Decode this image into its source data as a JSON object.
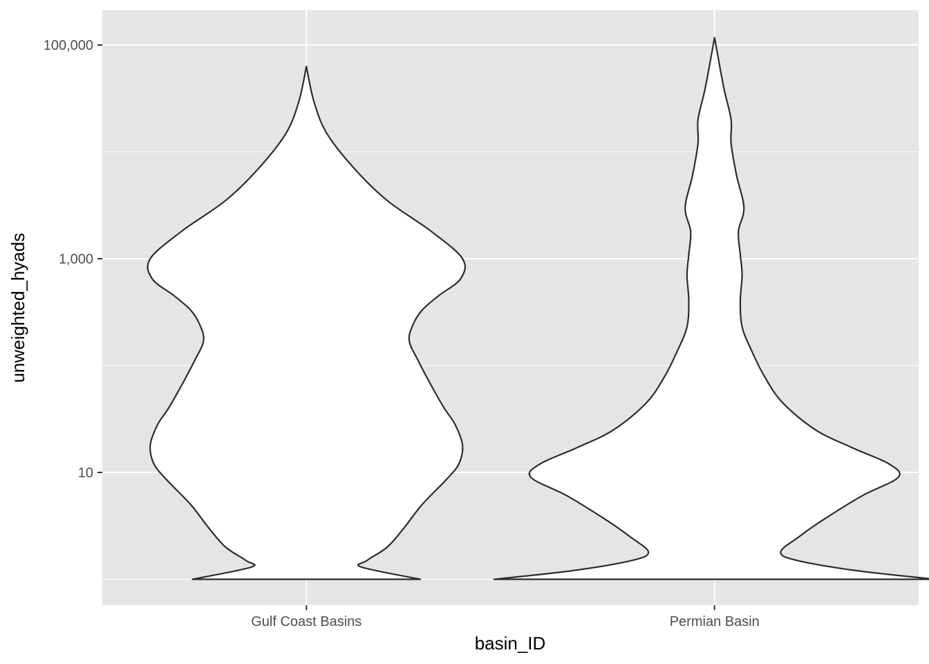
{
  "chart_data": {
    "type": "violin",
    "xlabel": "basin_ID",
    "ylabel": "unweighted_hyads",
    "y_scale": "log10",
    "ylim": [
      0.9,
      200000
    ],
    "y_ticks": [
      {
        "value": 10,
        "label": "10"
      },
      {
        "value": 1000,
        "label": "1,000"
      },
      {
        "value": 100000,
        "label": "100,000"
      }
    ],
    "y_minor_ticks": [
      1,
      100,
      10000
    ],
    "categories": [
      "Gulf Coast Basins",
      "Permian Basin"
    ],
    "grid": true,
    "colors": {
      "panel_background": "#e5e5e5",
      "grid": "#ffffff",
      "violin_fill": "#ffffff",
      "violin_stroke": "#2b2b2b",
      "tick_label": "#4d4d4d",
      "axis_title": "#000000"
    },
    "series": [
      {
        "category": "Gulf Coast Basins",
        "y_range": [
          1,
          63000
        ],
        "density_profile": [
          [
            1,
            0.62
          ],
          [
            1.3,
            0.3
          ],
          [
            1.5,
            0.33
          ],
          [
            2,
            0.44
          ],
          [
            3,
            0.53
          ],
          [
            5,
            0.63
          ],
          [
            8.5,
            0.76
          ],
          [
            12,
            0.83
          ],
          [
            18,
            0.85
          ],
          [
            28,
            0.81
          ],
          [
            40,
            0.75
          ],
          [
            65,
            0.68
          ],
          [
            110,
            0.61
          ],
          [
            170,
            0.56
          ],
          [
            240,
            0.58
          ],
          [
            330,
            0.63
          ],
          [
            450,
            0.72
          ],
          [
            650,
            0.84
          ],
          [
            1000,
            0.85
          ],
          [
            1800,
            0.68
          ],
          [
            3500,
            0.44
          ],
          [
            7000,
            0.26
          ],
          [
            15000,
            0.11
          ],
          [
            30000,
            0.04
          ],
          [
            63000,
            0
          ]
        ]
      },
      {
        "category": "Permian Basin",
        "y_range": [
          1,
          117000
        ],
        "density_profile": [
          [
            1,
            1.2
          ],
          [
            1.2,
            0.78
          ],
          [
            1.5,
            0.45
          ],
          [
            1.8,
            0.36
          ],
          [
            2.5,
            0.46
          ],
          [
            3.5,
            0.58
          ],
          [
            6,
            0.8
          ],
          [
            9,
            1.0
          ],
          [
            12,
            0.95
          ],
          [
            17,
            0.75
          ],
          [
            25,
            0.55
          ],
          [
            45,
            0.37
          ],
          [
            80,
            0.27
          ],
          [
            140,
            0.2
          ],
          [
            230,
            0.15
          ],
          [
            400,
            0.14
          ],
          [
            700,
            0.15
          ],
          [
            1100,
            0.14
          ],
          [
            1800,
            0.13
          ],
          [
            3000,
            0.16
          ],
          [
            6000,
            0.12
          ],
          [
            12000,
            0.09
          ],
          [
            20000,
            0.09
          ],
          [
            40000,
            0.05
          ],
          [
            117000,
            0
          ]
        ]
      }
    ]
  }
}
